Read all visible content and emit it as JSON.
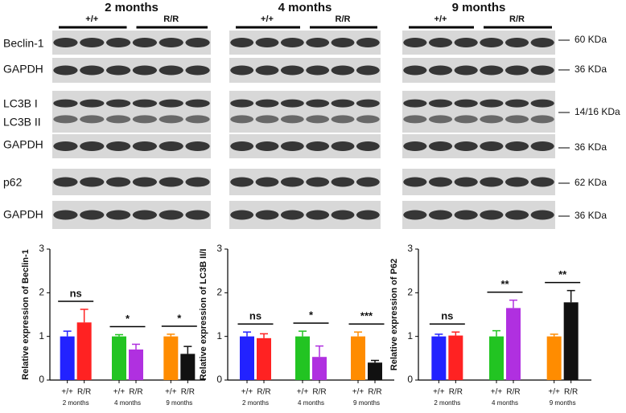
{
  "blots": {
    "columns": [
      "2 months",
      "4 months",
      "9 months"
    ],
    "genotypes": [
      "+/+",
      "R/R"
    ],
    "rows": [
      "Beclin-1",
      "GAPDH",
      "LC3B I",
      "LC3B II",
      "GAPDH",
      "p62",
      "GAPDH"
    ],
    "sizes": [
      "60 KDa",
      "36 KDa",
      "14/16 KDa",
      "36 KDa",
      "62 KDa",
      "36 KDa"
    ]
  },
  "chart_data": [
    {
      "type": "bar",
      "ylabel": "Relative expression of  Beclin-1",
      "ylim": [
        0,
        3
      ],
      "yticks": [
        0,
        1,
        2,
        3
      ],
      "categories": [
        "+/+",
        "R/R",
        "+/+",
        "R/R",
        "+/+",
        "R/R"
      ],
      "groups": [
        "2 months",
        "4 months",
        "9 months"
      ],
      "values": [
        1.0,
        1.32,
        1.0,
        0.7,
        1.0,
        0.6
      ],
      "errors": [
        0.12,
        0.3,
        0.04,
        0.12,
        0.05,
        0.17
      ],
      "colors": [
        "#2222ff",
        "#ff2222",
        "#22c422",
        "#b030e0",
        "#ff8c00",
        "#111111"
      ],
      "significance": [
        "ns",
        "*",
        "*"
      ]
    },
    {
      "type": "bar",
      "ylabel": "Relative expression of  LC3B II/I",
      "ylim": [
        0,
        3
      ],
      "yticks": [
        0,
        1,
        2,
        3
      ],
      "categories": [
        "+/+",
        "R/R",
        "+/+",
        "R/R",
        "+/+",
        "R/R"
      ],
      "groups": [
        "2 months",
        "4 months",
        "9 months"
      ],
      "values": [
        1.0,
        0.96,
        1.0,
        0.53,
        1.0,
        0.4
      ],
      "errors": [
        0.1,
        0.1,
        0.12,
        0.25,
        0.1,
        0.05
      ],
      "colors": [
        "#2222ff",
        "#ff2222",
        "#22c422",
        "#b030e0",
        "#ff8c00",
        "#111111"
      ],
      "significance": [
        "ns",
        "*",
        "***"
      ]
    },
    {
      "type": "bar",
      "ylabel": "Relative expression of  P62",
      "ylim": [
        0,
        3
      ],
      "yticks": [
        0,
        1,
        2,
        3
      ],
      "categories": [
        "+/+",
        "R/R",
        "+/+",
        "R/R",
        "+/+",
        "R/R"
      ],
      "groups": [
        "2 months",
        "4 months",
        "9 months"
      ],
      "values": [
        1.0,
        1.02,
        1.0,
        1.65,
        1.0,
        1.78
      ],
      "errors": [
        0.05,
        0.08,
        0.13,
        0.18,
        0.05,
        0.27
      ],
      "colors": [
        "#2222ff",
        "#ff2222",
        "#22c422",
        "#b030e0",
        "#ff8c00",
        "#111111"
      ],
      "significance": [
        "ns",
        "**",
        "**"
      ]
    }
  ]
}
